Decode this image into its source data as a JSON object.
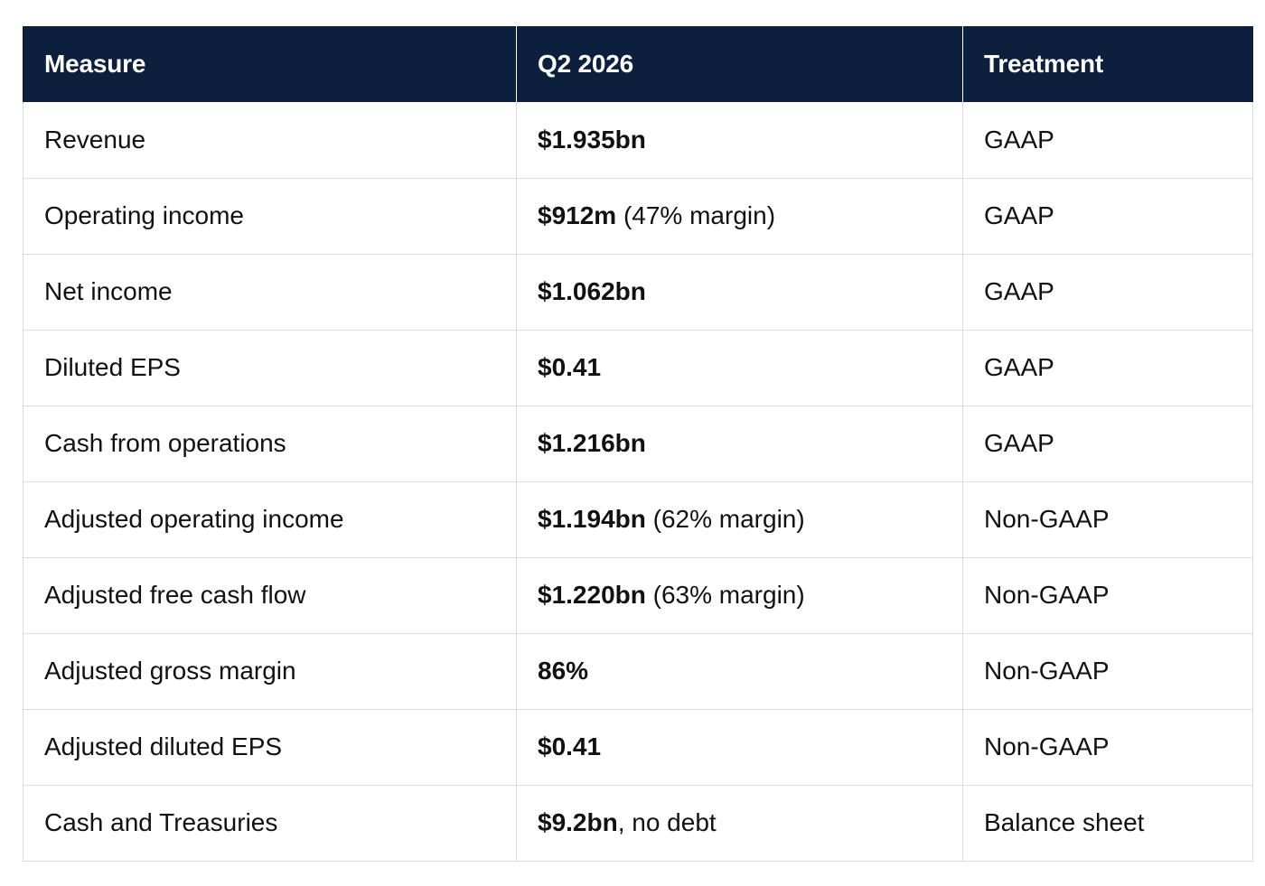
{
  "table": {
    "headers": [
      "Measure",
      "Q2 2026",
      "Treatment"
    ],
    "rows": [
      {
        "measure": "Revenue",
        "value_bold": "$1.935bn",
        "value_rest": "",
        "treatment": "GAAP"
      },
      {
        "measure": "Operating income",
        "value_bold": "$912m",
        "value_rest": " (47% margin)",
        "treatment": "GAAP"
      },
      {
        "measure": "Net income",
        "value_bold": "$1.062bn",
        "value_rest": "",
        "treatment": "GAAP"
      },
      {
        "measure": "Diluted EPS",
        "value_bold": "$0.41",
        "value_rest": "",
        "treatment": "GAAP"
      },
      {
        "measure": "Cash from operations",
        "value_bold": "$1.216bn",
        "value_rest": "",
        "treatment": "GAAP"
      },
      {
        "measure": "Adjusted operating income",
        "value_bold": "$1.194bn",
        "value_rest": " (62% margin)",
        "treatment": "Non-GAAP"
      },
      {
        "measure": "Adjusted free cash flow",
        "value_bold": "$1.220bn",
        "value_rest": " (63% margin)",
        "treatment": "Non-GAAP"
      },
      {
        "measure": "Adjusted gross margin",
        "value_bold": "86%",
        "value_rest": "",
        "treatment": "Non-GAAP"
      },
      {
        "measure": "Adjusted diluted EPS",
        "value_bold": "$0.41",
        "value_rest": "",
        "treatment": "Non-GAAP"
      },
      {
        "measure": "Cash and Treasuries",
        "value_bold": "$9.2bn",
        "value_rest": ", no debt",
        "treatment": "Balance sheet"
      }
    ]
  },
  "colors": {
    "header_bg": "#0c1f3d",
    "header_text": "#ffffff",
    "border": "#dcdcdc"
  }
}
